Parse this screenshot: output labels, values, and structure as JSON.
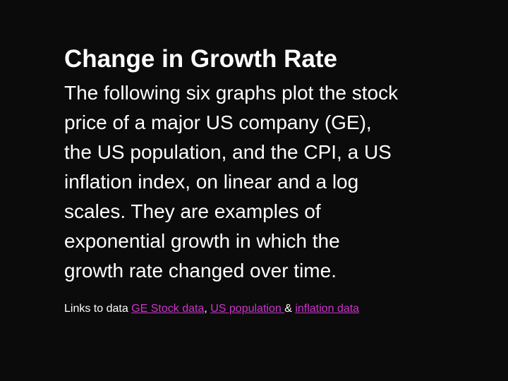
{
  "slide": {
    "title": "Change in Growth Rate",
    "body_lines": [
      "The following six graphs plot the stock",
      "price of a major US company (GE),",
      "the US population, and the CPI, a US",
      "inflation index, on linear and a log",
      "scales. They are examples of",
      "exponential growth in which the",
      "growth rate changed over time."
    ],
    "links": {
      "prefix": "Links to data ",
      "ge_stock": "GE Stock data",
      "sep1": ", ",
      "us_population": "US population ",
      "sep2": "& ",
      "inflation": "inflation data"
    }
  },
  "colors": {
    "background": "#0b0b0b",
    "text": "#ffffff",
    "link": "#cc33cc"
  }
}
